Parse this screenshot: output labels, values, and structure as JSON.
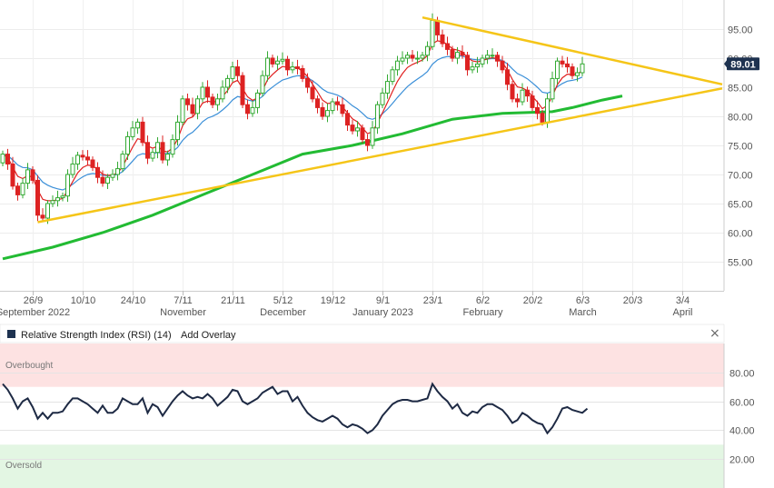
{
  "chart_data": [
    {
      "type": "candlestick",
      "ylim": [
        50,
        100
      ],
      "y_ticks": [
        55,
        60,
        65,
        70,
        75,
        80,
        85,
        90,
        95
      ],
      "x_ticks": [
        {
          "i": 6,
          "top": "26/9",
          "bottom": "September 2022"
        },
        {
          "i": 16,
          "top": "10/10",
          "bottom": ""
        },
        {
          "i": 26,
          "top": "24/10",
          "bottom": ""
        },
        {
          "i": 36,
          "top": "7/11",
          "bottom": "November"
        },
        {
          "i": 46,
          "top": "21/11",
          "bottom": ""
        },
        {
          "i": 56,
          "top": "5/12",
          "bottom": "December"
        },
        {
          "i": 66,
          "top": "19/12",
          "bottom": ""
        },
        {
          "i": 76,
          "top": "9/1",
          "bottom": "January 2023"
        },
        {
          "i": 86,
          "top": "23/1",
          "bottom": ""
        },
        {
          "i": 96,
          "top": "6/2",
          "bottom": "February"
        },
        {
          "i": 106,
          "top": "20/2",
          "bottom": ""
        },
        {
          "i": 116,
          "top": "6/3",
          "bottom": "March"
        },
        {
          "i": 126,
          "top": "20/3",
          "bottom": ""
        },
        {
          "i": 136,
          "top": "3/4",
          "bottom": "April"
        }
      ],
      "last_price": "89.01",
      "last_price_value": 89.01,
      "colors": {
        "up": "#33aa33",
        "down": "#dd2222",
        "ma_fast": "#e02020",
        "ma_slow": "#3a8fd8",
        "ma_long": "#22bb33",
        "trend": "#f5c518",
        "price_tag": "#1e3250"
      },
      "close": [
        73.5,
        71.8,
        68,
        66.5,
        68.5,
        70.8,
        69,
        63,
        62.5,
        65,
        65.5,
        66,
        66.3,
        70,
        71.8,
        73.3,
        73,
        72.5,
        71.2,
        69.5,
        68.5,
        69.5,
        70,
        71,
        73.5,
        76.5,
        78,
        79,
        75.5,
        72.8,
        73.8,
        75.5,
        72.5,
        73.5,
        76,
        79,
        83,
        82,
        80.5,
        83,
        85,
        83.3,
        82,
        83,
        85,
        86.5,
        88.5,
        87,
        82,
        80.5,
        81.5,
        84,
        87,
        90,
        89,
        89.5,
        89.8,
        88,
        88.5,
        88.2,
        86.5,
        85,
        83,
        81.5,
        80,
        81,
        82.5,
        82,
        80.5,
        78.5,
        77.5,
        78,
        76,
        75,
        78,
        82,
        84,
        86,
        88,
        89.5,
        90,
        90.5,
        90,
        90,
        90.5,
        92,
        96.5,
        94,
        92.5,
        91.5,
        90,
        91,
        90.5,
        88,
        88.5,
        89,
        90,
        90.5,
        90.5,
        89.5,
        88,
        85.5,
        83,
        82.5,
        84.5,
        83.5,
        81.5,
        80.5,
        79,
        83,
        86.5,
        89.5,
        89,
        88.5,
        87,
        87.5,
        89.01
      ],
      "open": [
        72,
        73.5,
        71.8,
        68,
        66.5,
        68.5,
        70.8,
        69,
        63,
        62.5,
        65,
        65.5,
        66,
        66.3,
        70,
        71.8,
        73.3,
        73,
        72.5,
        71.2,
        69.5,
        68.5,
        69.5,
        70,
        71,
        73.5,
        76.5,
        78,
        79,
        75.5,
        72.8,
        73.8,
        75.5,
        72.5,
        73.5,
        76,
        79,
        83,
        82,
        80.5,
        83,
        85,
        83.3,
        82,
        83,
        85,
        86.5,
        88.5,
        87,
        82,
        80.5,
        81.5,
        84,
        87,
        90,
        89,
        89.5,
        89.8,
        88,
        88.5,
        88.2,
        86.5,
        85,
        83,
        81.5,
        80,
        81,
        82.5,
        82,
        80.5,
        78.5,
        77.5,
        78,
        76,
        75,
        78,
        82,
        84,
        86,
        88,
        89.5,
        90,
        90.5,
        90,
        90,
        90.5,
        92,
        96.5,
        94,
        92.5,
        91.5,
        90,
        91,
        90.5,
        88,
        88.5,
        89,
        90,
        90.5,
        90.5,
        89.5,
        88,
        85.5,
        83,
        82.5,
        84.5,
        83.5,
        81.5,
        80.5,
        79,
        83,
        86.5,
        89.5,
        89,
        88.5,
        87,
        87.5
      ],
      "trend_upper": {
        "from": {
          "i": 84,
          "y": 97
        },
        "to": {
          "i": 144,
          "y": 85.5
        }
      },
      "trend_lower": {
        "from": {
          "i": 7,
          "y": 61.8
        },
        "to": {
          "i": 144,
          "y": 84.8
        }
      },
      "ma_long_points": [
        [
          0,
          55.5
        ],
        [
          10,
          57.5
        ],
        [
          20,
          60
        ],
        [
          30,
          63
        ],
        [
          40,
          66.5
        ],
        [
          50,
          70
        ],
        [
          60,
          73.5
        ],
        [
          70,
          75
        ],
        [
          80,
          77
        ],
        [
          90,
          79.5
        ],
        [
          100,
          80.5
        ],
        [
          110,
          80.8
        ],
        [
          114,
          81.5
        ],
        [
          120,
          82.8
        ],
        [
          124,
          83.5
        ]
      ]
    },
    {
      "type": "line",
      "title": "Relative Strength Index (RSI) (14)",
      "ylim": [
        0,
        100
      ],
      "y_ticks": [
        20,
        40,
        60,
        80
      ],
      "overbought": 70,
      "oversold": 30,
      "series": [
        {
          "values": [
            72,
            68,
            62,
            55,
            60,
            62,
            56,
            48,
            52,
            48,
            52,
            52,
            53,
            58,
            62,
            62,
            60,
            58,
            55,
            52,
            57,
            52,
            52,
            55,
            62,
            60,
            58,
            58,
            62,
            52,
            58,
            56,
            50,
            55,
            60,
            64,
            67,
            64,
            62,
            63,
            62,
            65,
            62,
            57,
            60,
            63,
            68,
            67,
            60,
            58,
            60,
            62,
            66,
            68,
            70,
            65,
            67,
            67,
            60,
            63,
            57,
            52,
            49,
            47,
            46,
            48,
            50,
            48,
            44,
            42,
            44,
            43,
            41,
            38,
            40,
            44,
            50,
            54,
            58,
            60,
            61,
            61,
            60,
            60,
            61,
            62,
            72,
            67,
            63,
            60,
            55,
            58,
            52,
            50,
            53,
            52,
            56,
            58,
            58,
            56,
            54,
            50,
            45,
            47,
            52,
            50,
            47,
            45,
            44,
            38,
            42,
            48,
            55,
            56,
            54,
            53,
            52,
            55
          ]
        }
      ],
      "zone_labels": {
        "overbought": "Overbought",
        "oversold": "Oversold"
      },
      "add_overlay": "Add Overlay"
    }
  ]
}
